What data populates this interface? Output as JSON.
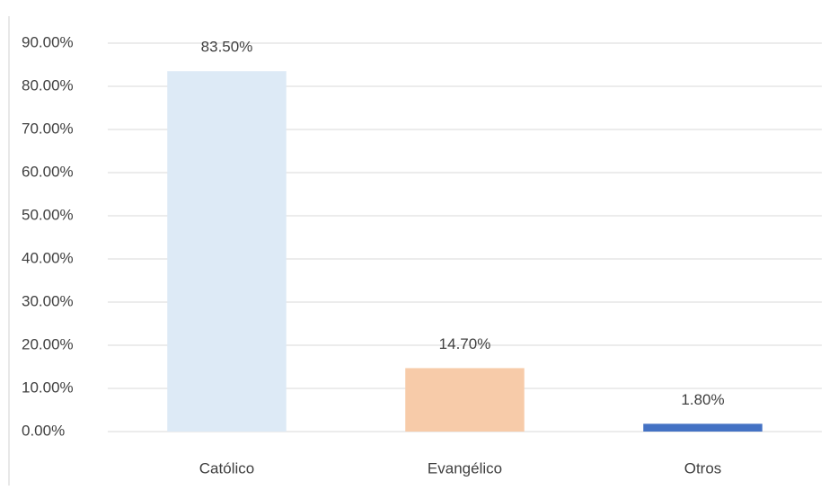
{
  "chart_data": {
    "type": "bar",
    "categories": [
      "Católico",
      "Evangélico",
      "Otros"
    ],
    "values": [
      83.5,
      14.7,
      1.8
    ],
    "value_labels": [
      "83.50%",
      "14.70%",
      "1.80%"
    ],
    "colors": [
      "#ddeaf6",
      "#f7cba9",
      "#4472c4"
    ],
    "ylim": [
      0,
      90
    ],
    "yticks": [
      {
        "value": 0,
        "label": "0.00%"
      },
      {
        "value": 10,
        "label": "10.00%"
      },
      {
        "value": 20,
        "label": "20.00%"
      },
      {
        "value": 30,
        "label": "30.00%"
      },
      {
        "value": 40,
        "label": "40.00%"
      },
      {
        "value": 50,
        "label": "50.00%"
      },
      {
        "value": 60,
        "label": "60.00%"
      },
      {
        "value": 70,
        "label": "70.00%"
      },
      {
        "value": 80,
        "label": "80.00%"
      },
      {
        "value": 90,
        "label": "90.00%"
      }
    ],
    "grid": true
  }
}
